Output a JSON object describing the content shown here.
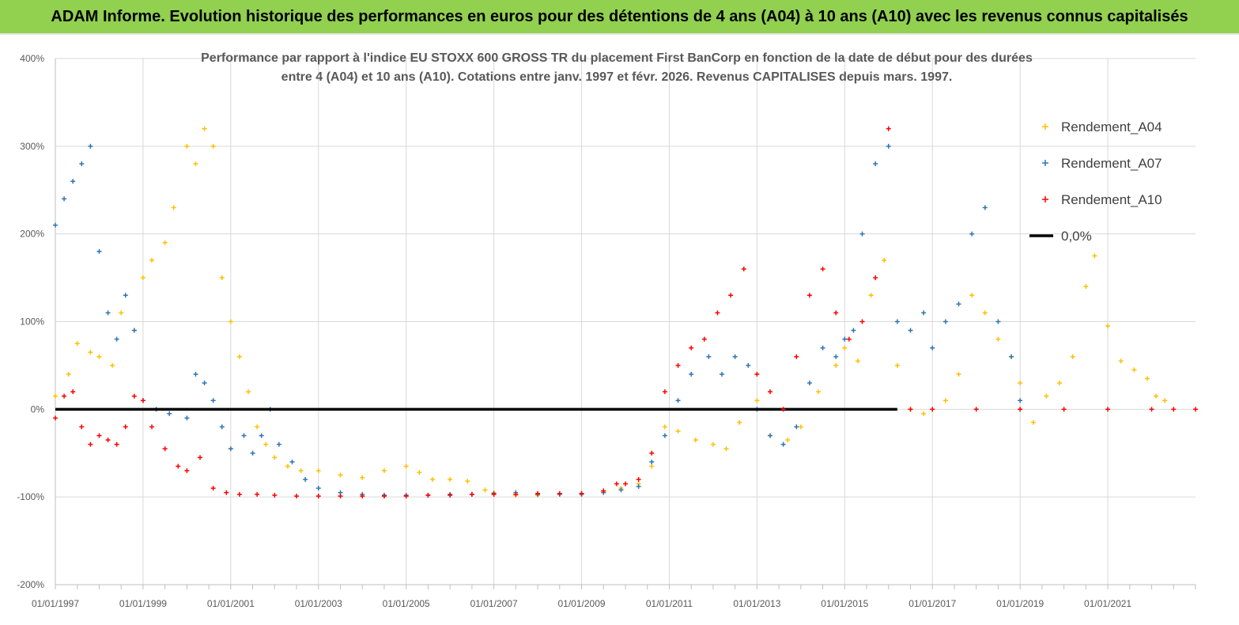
{
  "banner": {
    "title": "ADAM Informe. Evolution historique des performances en euros pour des détentions de 4 ans (A04) à 10 ans (A10) avec les revenus connus capitalisés"
  },
  "chart_data": {
    "type": "scatter",
    "title_line1": "Performance par rapport à l'indice EU STOXX 600 GROSS TR  du placement First BanCorp en fonction de la date de début pour des durées",
    "title_line2": "entre 4 (A04) et 10 ans (A10).  Cotations entre janv. 1997 et févr. 2026. Revenus CAPITALISES depuis mars. 1997.",
    "ylim": [
      -200,
      400
    ],
    "yticks": [
      400,
      300,
      200,
      100,
      0,
      -100,
      -200
    ],
    "ytick_labels": [
      "400%",
      "300%",
      "200%",
      "100%",
      "0%",
      "-100%",
      "-200%"
    ],
    "xlim": [
      1997.0,
      2023.0
    ],
    "xticks": [
      1997,
      1999,
      2001,
      2003,
      2005,
      2007,
      2009,
      2011,
      2013,
      2015,
      2017,
      2019,
      2021
    ],
    "xtick_labels": [
      "01/01/1997",
      "01/01/1999",
      "01/01/2001",
      "01/01/2003",
      "01/01/2005",
      "01/01/2007",
      "01/01/2009",
      "01/01/2011",
      "01/01/2013",
      "01/01/2015",
      "01/01/2017",
      "01/01/2019",
      "01/01/2021"
    ],
    "legend_position": "top-right",
    "series": [
      {
        "name": "Rendement_A04",
        "color": "#ffc000",
        "x": [
          1997.0,
          1997.3,
          1997.5,
          1997.8,
          1998.0,
          1998.3,
          1998.5,
          1998.8,
          1999.0,
          1999.2,
          1999.5,
          1999.7,
          2000.0,
          2000.2,
          2000.4,
          2000.6,
          2000.8,
          2001.0,
          2001.2,
          2001.4,
          2001.6,
          2001.8,
          2002.0,
          2002.3,
          2002.6,
          2003.0,
          2003.5,
          2004.0,
          2004.5,
          2005.0,
          2005.3,
          2005.6,
          2006.0,
          2006.4,
          2006.8,
          2007.0,
          2007.5,
          2008.0,
          2008.5,
          2009.0,
          2009.5,
          2009.9,
          2010.3,
          2010.6,
          2010.9,
          2011.2,
          2011.6,
          2012.0,
          2012.3,
          2012.6,
          2013.0,
          2013.3,
          2013.7,
          2014.0,
          2014.4,
          2014.8,
          2015.0,
          2015.3,
          2015.6,
          2015.9,
          2016.2,
          2016.5,
          2016.8,
          2017.0,
          2017.3,
          2017.6,
          2017.9,
          2018.2,
          2018.5,
          2018.8,
          2019.0,
          2019.3,
          2019.6,
          2019.9,
          2020.2,
          2020.5,
          2020.7,
          2021.0,
          2021.3,
          2021.6,
          2021.9,
          2022.1,
          2022.3
        ],
        "y": [
          15,
          40,
          75,
          65,
          60,
          50,
          110,
          90,
          150,
          170,
          190,
          230,
          300,
          280,
          320,
          300,
          150,
          100,
          60,
          20,
          -20,
          -40,
          -55,
          -65,
          -70,
          -70,
          -75,
          -78,
          -70,
          -65,
          -72,
          -80,
          -80,
          -82,
          -92,
          -95,
          -98,
          -98,
          -97,
          -96,
          -94,
          -90,
          -85,
          -65,
          -20,
          -25,
          -35,
          -40,
          -45,
          -15,
          10,
          -30,
          -35,
          -20,
          20,
          50,
          70,
          55,
          130,
          170,
          50,
          0,
          -5,
          0,
          10,
          40,
          130,
          110,
          80,
          60,
          30,
          -15,
          15,
          30,
          60,
          140,
          175,
          95,
          55,
          45,
          35,
          15,
          10
        ]
      },
      {
        "name": "Rendement_A07",
        "color": "#2e75b6",
        "x": [
          1997.0,
          1997.2,
          1997.4,
          1997.6,
          1997.8,
          1998.0,
          1998.2,
          1998.4,
          1998.6,
          1998.8,
          1999.0,
          1999.3,
          1999.6,
          2000.0,
          2000.2,
          2000.4,
          2000.6,
          2000.8,
          2001.0,
          2001.3,
          2001.5,
          2001.7,
          2001.9,
          2002.1,
          2002.4,
          2002.7,
          2003.0,
          2003.5,
          2004.0,
          2004.5,
          2005.0,
          2005.5,
          2006.0,
          2006.5,
          2007.0,
          2007.5,
          2008.0,
          2008.5,
          2009.0,
          2009.5,
          2009.9,
          2010.3,
          2010.6,
          2010.9,
          2011.2,
          2011.5,
          2011.9,
          2012.2,
          2012.5,
          2012.8,
          2013.0,
          2013.3,
          2013.6,
          2013.9,
          2014.2,
          2014.5,
          2014.8,
          2015.0,
          2015.2,
          2015.4,
          2015.7,
          2016.0,
          2016.2,
          2016.5,
          2016.8,
          2017.0,
          2017.3,
          2017.6,
          2017.9,
          2018.2,
          2018.5,
          2018.8,
          2019.0
        ],
        "y": [
          210,
          240,
          260,
          280,
          300,
          180,
          110,
          80,
          130,
          90,
          10,
          0,
          -5,
          -10,
          40,
          30,
          10,
          -20,
          -45,
          -30,
          -50,
          -30,
          0,
          -40,
          -60,
          -80,
          -90,
          -95,
          -97,
          -98,
          -98,
          -98,
          -97,
          -97,
          -96,
          -95,
          -97,
          -97,
          -97,
          -95,
          -92,
          -88,
          -60,
          -30,
          10,
          40,
          60,
          40,
          60,
          50,
          0,
          -30,
          -40,
          -20,
          30,
          70,
          60,
          80,
          90,
          200,
          280,
          300,
          100,
          90,
          110,
          70,
          100,
          120,
          200,
          230,
          100,
          60,
          10
        ]
      },
      {
        "name": "Rendement_A10",
        "color": "#ff0000",
        "x": [
          1997.0,
          1997.2,
          1997.4,
          1997.6,
          1997.8,
          1998.0,
          1998.2,
          1998.4,
          1998.6,
          1998.8,
          1999.0,
          1999.2,
          1999.5,
          1999.8,
          2000.0,
          2000.3,
          2000.6,
          2000.9,
          2001.2,
          2001.6,
          2002.0,
          2002.5,
          2003.0,
          2003.5,
          2004.0,
          2004.5,
          2005.0,
          2005.5,
          2006.0,
          2006.5,
          2007.0,
          2007.5,
          2008.0,
          2008.5,
          2009.0,
          2009.5,
          2009.8,
          2010.0,
          2010.3,
          2010.6,
          2010.9,
          2011.2,
          2011.5,
          2011.8,
          2012.1,
          2012.4,
          2012.7,
          2013.0,
          2013.3,
          2013.6,
          2013.9,
          2014.2,
          2014.5,
          2014.8,
          2015.1,
          2015.4,
          2015.7,
          2016.0,
          2016.5,
          2017.0,
          2018.0,
          2019.0,
          2020.0,
          2021.0,
          2022.0,
          2022.5,
          2023.0
        ],
        "y": [
          -10,
          15,
          20,
          -20,
          -40,
          -30,
          -35,
          -40,
          -20,
          15,
          10,
          -20,
          -45,
          -65,
          -70,
          -55,
          -90,
          -95,
          -97,
          -97,
          -98,
          -99,
          -99,
          -99,
          -99,
          -99,
          -99,
          -98,
          -98,
          -97,
          -97,
          -97,
          -96,
          -96,
          -96,
          -93,
          -85,
          -85,
          -80,
          -50,
          20,
          50,
          70,
          80,
          110,
          130,
          160,
          40,
          20,
          0,
          60,
          130,
          160,
          110,
          80,
          100,
          150,
          320,
          0,
          0,
          0,
          0,
          0,
          0,
          0,
          0,
          0
        ]
      },
      {
        "name": "0,0%",
        "color": "#000000",
        "x": [
          1997.0,
          2016.2
        ],
        "y": [
          0,
          0
        ]
      }
    ]
  }
}
